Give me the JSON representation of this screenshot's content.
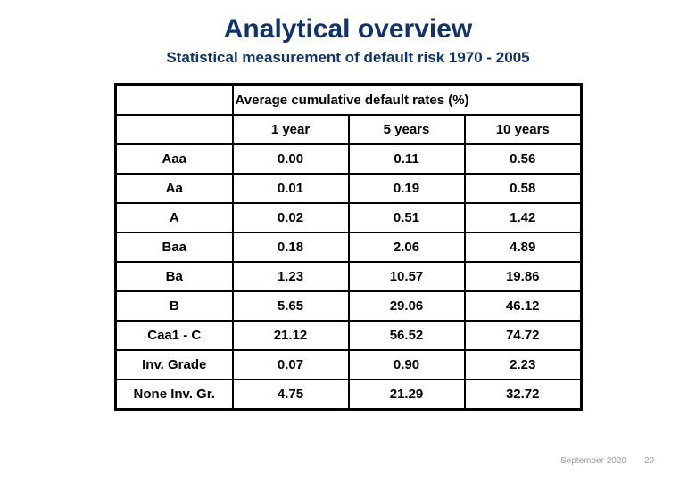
{
  "slide": {
    "title": "Analytical overview",
    "subtitle": "Statistical measurement of default risk 1970 - 2005",
    "title_color": "#10336b",
    "footer": {
      "date": "September 2020",
      "page_number": "20"
    }
  },
  "table": {
    "merged_header": "Average cumulative default rates (%)",
    "column_headers": [
      "1 year",
      "5 years",
      "10 years"
    ],
    "rows": [
      {
        "label": "Aaa",
        "values": [
          "0.00",
          "0.11",
          "0.56"
        ]
      },
      {
        "label": "Aa",
        "values": [
          "0.01",
          "0.19",
          "0.58"
        ]
      },
      {
        "label": "A",
        "values": [
          "0.02",
          "0.51",
          "1.42"
        ]
      },
      {
        "label": "Baa",
        "values": [
          "0.18",
          "2.06",
          "4.89"
        ]
      },
      {
        "label": "Ba",
        "values": [
          "1.23",
          "10.57",
          "19.86"
        ]
      },
      {
        "label": "B",
        "values": [
          "5.65",
          "29.06",
          "46.12"
        ]
      },
      {
        "label": "Caa1 - C",
        "values": [
          "21.12",
          "56.52",
          "74.72"
        ]
      },
      {
        "label": "Inv. Grade",
        "values": [
          "0.07",
          "0.90",
          "2.23"
        ]
      },
      {
        "label": "None Inv. Gr.",
        "values": [
          "4.75",
          "21.29",
          "32.72"
        ]
      }
    ]
  }
}
